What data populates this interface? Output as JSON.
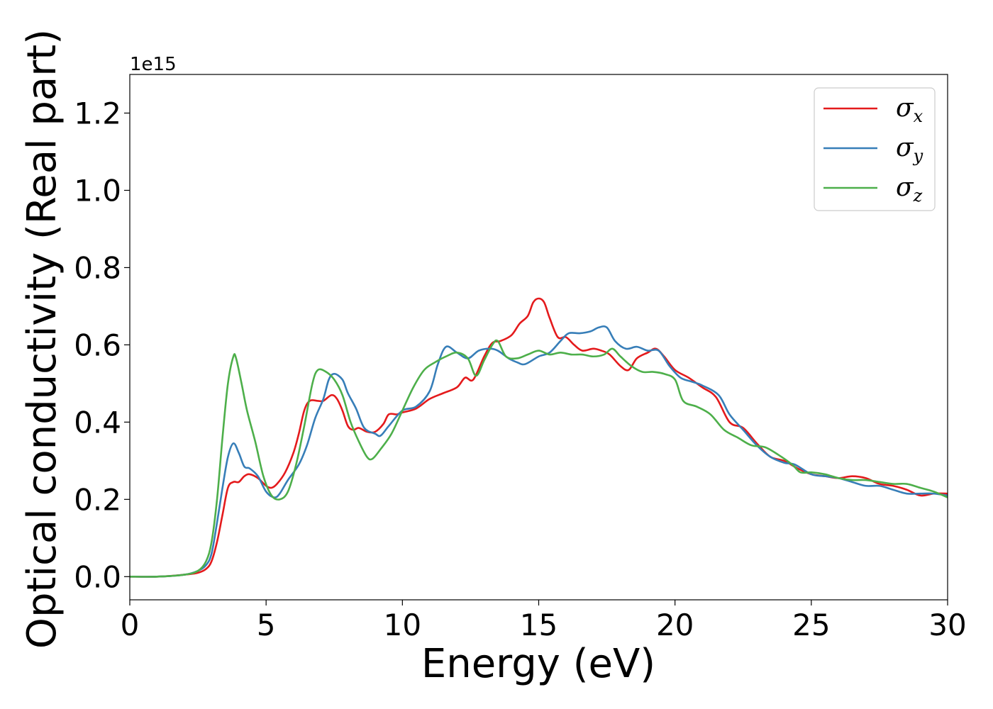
{
  "chart_data": {
    "type": "line",
    "xlabel": "Energy (eV)",
    "ylabel": "Optical conductivity (Real part)",
    "y_offset_text": "1e15",
    "xlim": [
      0,
      30
    ],
    "ylim": [
      -0.06,
      1.3
    ],
    "x_ticks": [
      0,
      5,
      10,
      15,
      20,
      25,
      30
    ],
    "x_tick_labels": [
      "0",
      "5",
      "10",
      "15",
      "20",
      "25",
      "30"
    ],
    "y_ticks": [
      0.0,
      0.2,
      0.4,
      0.6,
      0.8,
      1.0,
      1.2
    ],
    "y_tick_labels": [
      "0.0",
      "0.2",
      "0.4",
      "0.6",
      "0.8",
      "1.0",
      "1.2"
    ],
    "grid": false,
    "legend_position": "top-right",
    "series": [
      {
        "name": "σ",
        "subscript": "x",
        "color": "#e41a1c",
        "points": [
          [
            0,
            0
          ],
          [
            1,
            0
          ],
          [
            2,
            0.005
          ],
          [
            2.5,
            0.01
          ],
          [
            2.8,
            0.02
          ],
          [
            3.0,
            0.04
          ],
          [
            3.2,
            0.09
          ],
          [
            3.4,
            0.16
          ],
          [
            3.6,
            0.23
          ],
          [
            3.8,
            0.245
          ],
          [
            4.0,
            0.245
          ],
          [
            4.2,
            0.26
          ],
          [
            4.4,
            0.265
          ],
          [
            4.7,
            0.255
          ],
          [
            5.0,
            0.235
          ],
          [
            5.2,
            0.23
          ],
          [
            5.4,
            0.24
          ],
          [
            5.7,
            0.27
          ],
          [
            6.0,
            0.32
          ],
          [
            6.2,
            0.37
          ],
          [
            6.4,
            0.43
          ],
          [
            6.6,
            0.455
          ],
          [
            6.9,
            0.455
          ],
          [
            7.1,
            0.455
          ],
          [
            7.4,
            0.47
          ],
          [
            7.6,
            0.46
          ],
          [
            7.8,
            0.43
          ],
          [
            8.0,
            0.39
          ],
          [
            8.2,
            0.38
          ],
          [
            8.4,
            0.385
          ],
          [
            8.7,
            0.375
          ],
          [
            9.0,
            0.375
          ],
          [
            9.3,
            0.395
          ],
          [
            9.5,
            0.42
          ],
          [
            9.8,
            0.42
          ],
          [
            10.0,
            0.425
          ],
          [
            10.5,
            0.435
          ],
          [
            11.0,
            0.46
          ],
          [
            11.5,
            0.475
          ],
          [
            12.0,
            0.49
          ],
          [
            12.3,
            0.515
          ],
          [
            12.6,
            0.51
          ],
          [
            13.0,
            0.57
          ],
          [
            13.3,
            0.605
          ],
          [
            13.6,
            0.61
          ],
          [
            14.0,
            0.625
          ],
          [
            14.3,
            0.655
          ],
          [
            14.6,
            0.675
          ],
          [
            14.8,
            0.71
          ],
          [
            15.0,
            0.72
          ],
          [
            15.2,
            0.71
          ],
          [
            15.4,
            0.67
          ],
          [
            15.7,
            0.62
          ],
          [
            16.0,
            0.62
          ],
          [
            16.3,
            0.6
          ],
          [
            16.6,
            0.585
          ],
          [
            17.0,
            0.59
          ],
          [
            17.3,
            0.585
          ],
          [
            17.6,
            0.575
          ],
          [
            18.0,
            0.545
          ],
          [
            18.3,
            0.535
          ],
          [
            18.6,
            0.565
          ],
          [
            19.0,
            0.58
          ],
          [
            19.3,
            0.59
          ],
          [
            19.6,
            0.57
          ],
          [
            20.0,
            0.535
          ],
          [
            20.5,
            0.515
          ],
          [
            21.0,
            0.49
          ],
          [
            21.5,
            0.465
          ],
          [
            22.0,
            0.4
          ],
          [
            22.5,
            0.385
          ],
          [
            23.0,
            0.345
          ],
          [
            23.5,
            0.31
          ],
          [
            24.0,
            0.3
          ],
          [
            24.5,
            0.28
          ],
          [
            25.0,
            0.265
          ],
          [
            25.5,
            0.26
          ],
          [
            26.0,
            0.255
          ],
          [
            26.5,
            0.26
          ],
          [
            27.0,
            0.255
          ],
          [
            27.5,
            0.24
          ],
          [
            28.0,
            0.235
          ],
          [
            28.5,
            0.225
          ],
          [
            29.0,
            0.21
          ],
          [
            29.5,
            0.215
          ],
          [
            30.0,
            0.215
          ]
        ]
      },
      {
        "name": "σ",
        "subscript": "y",
        "color": "#377eb8",
        "points": [
          [
            0,
            0
          ],
          [
            1,
            0
          ],
          [
            2,
            0.005
          ],
          [
            2.5,
            0.015
          ],
          [
            2.8,
            0.03
          ],
          [
            3.0,
            0.06
          ],
          [
            3.2,
            0.14
          ],
          [
            3.4,
            0.23
          ],
          [
            3.6,
            0.31
          ],
          [
            3.8,
            0.345
          ],
          [
            4.0,
            0.32
          ],
          [
            4.2,
            0.285
          ],
          [
            4.4,
            0.28
          ],
          [
            4.7,
            0.26
          ],
          [
            5.0,
            0.22
          ],
          [
            5.3,
            0.205
          ],
          [
            5.5,
            0.215
          ],
          [
            5.8,
            0.25
          ],
          [
            6.2,
            0.29
          ],
          [
            6.5,
            0.34
          ],
          [
            6.8,
            0.41
          ],
          [
            7.1,
            0.46
          ],
          [
            7.3,
            0.51
          ],
          [
            7.5,
            0.525
          ],
          [
            7.8,
            0.51
          ],
          [
            8.0,
            0.475
          ],
          [
            8.3,
            0.435
          ],
          [
            8.6,
            0.385
          ],
          [
            9.0,
            0.37
          ],
          [
            9.2,
            0.365
          ],
          [
            9.5,
            0.39
          ],
          [
            10.0,
            0.43
          ],
          [
            10.5,
            0.44
          ],
          [
            11.0,
            0.48
          ],
          [
            11.3,
            0.55
          ],
          [
            11.6,
            0.595
          ],
          [
            12.0,
            0.58
          ],
          [
            12.4,
            0.565
          ],
          [
            12.8,
            0.585
          ],
          [
            13.2,
            0.59
          ],
          [
            13.5,
            0.585
          ],
          [
            13.9,
            0.565
          ],
          [
            14.2,
            0.555
          ],
          [
            14.5,
            0.55
          ],
          [
            15.0,
            0.57
          ],
          [
            15.4,
            0.58
          ],
          [
            15.8,
            0.61
          ],
          [
            16.1,
            0.63
          ],
          [
            16.5,
            0.63
          ],
          [
            16.9,
            0.635
          ],
          [
            17.2,
            0.645
          ],
          [
            17.5,
            0.645
          ],
          [
            17.8,
            0.61
          ],
          [
            18.2,
            0.59
          ],
          [
            18.6,
            0.595
          ],
          [
            19.0,
            0.585
          ],
          [
            19.4,
            0.585
          ],
          [
            19.8,
            0.545
          ],
          [
            20.2,
            0.515
          ],
          [
            20.6,
            0.505
          ],
          [
            21.0,
            0.495
          ],
          [
            21.6,
            0.47
          ],
          [
            22.0,
            0.42
          ],
          [
            22.5,
            0.38
          ],
          [
            23.0,
            0.34
          ],
          [
            23.5,
            0.31
          ],
          [
            24.0,
            0.295
          ],
          [
            24.4,
            0.29
          ],
          [
            25.0,
            0.265
          ],
          [
            25.5,
            0.26
          ],
          [
            26.0,
            0.255
          ],
          [
            26.5,
            0.245
          ],
          [
            27.0,
            0.235
          ],
          [
            27.5,
            0.235
          ],
          [
            28.0,
            0.225
          ],
          [
            28.5,
            0.215
          ],
          [
            29.0,
            0.215
          ],
          [
            29.5,
            0.215
          ],
          [
            30.0,
            0.21
          ]
        ]
      },
      {
        "name": "σ",
        "subscript": "z",
        "color": "#4daf4a",
        "points": [
          [
            0,
            0
          ],
          [
            1,
            0
          ],
          [
            2,
            0.005
          ],
          [
            2.5,
            0.015
          ],
          [
            2.8,
            0.04
          ],
          [
            3.0,
            0.09
          ],
          [
            3.2,
            0.2
          ],
          [
            3.4,
            0.36
          ],
          [
            3.6,
            0.5
          ],
          [
            3.8,
            0.57
          ],
          [
            3.9,
            0.565
          ],
          [
            4.1,
            0.5
          ],
          [
            4.3,
            0.43
          ],
          [
            4.6,
            0.35
          ],
          [
            4.9,
            0.26
          ],
          [
            5.2,
            0.21
          ],
          [
            5.5,
            0.2
          ],
          [
            5.8,
            0.22
          ],
          [
            6.1,
            0.29
          ],
          [
            6.4,
            0.39
          ],
          [
            6.7,
            0.5
          ],
          [
            6.9,
            0.535
          ],
          [
            7.2,
            0.53
          ],
          [
            7.5,
            0.51
          ],
          [
            7.8,
            0.47
          ],
          [
            8.1,
            0.4
          ],
          [
            8.4,
            0.35
          ],
          [
            8.7,
            0.31
          ],
          [
            8.9,
            0.305
          ],
          [
            9.2,
            0.33
          ],
          [
            9.6,
            0.37
          ],
          [
            10.0,
            0.43
          ],
          [
            10.4,
            0.49
          ],
          [
            10.8,
            0.535
          ],
          [
            11.2,
            0.555
          ],
          [
            11.6,
            0.57
          ],
          [
            12.0,
            0.58
          ],
          [
            12.4,
            0.565
          ],
          [
            12.7,
            0.52
          ],
          [
            13.0,
            0.56
          ],
          [
            13.3,
            0.6
          ],
          [
            13.5,
            0.61
          ],
          [
            13.8,
            0.57
          ],
          [
            14.2,
            0.565
          ],
          [
            14.6,
            0.575
          ],
          [
            15.0,
            0.585
          ],
          [
            15.4,
            0.575
          ],
          [
            15.8,
            0.58
          ],
          [
            16.2,
            0.575
          ],
          [
            16.6,
            0.575
          ],
          [
            17.0,
            0.57
          ],
          [
            17.4,
            0.575
          ],
          [
            17.7,
            0.59
          ],
          [
            18.0,
            0.57
          ],
          [
            18.4,
            0.545
          ],
          [
            18.8,
            0.53
          ],
          [
            19.2,
            0.53
          ],
          [
            19.6,
            0.525
          ],
          [
            20.0,
            0.51
          ],
          [
            20.3,
            0.455
          ],
          [
            20.8,
            0.44
          ],
          [
            21.3,
            0.42
          ],
          [
            21.8,
            0.38
          ],
          [
            22.3,
            0.36
          ],
          [
            22.8,
            0.34
          ],
          [
            23.3,
            0.335
          ],
          [
            23.8,
            0.315
          ],
          [
            24.3,
            0.29
          ],
          [
            24.6,
            0.27
          ],
          [
            25.0,
            0.27
          ],
          [
            25.5,
            0.265
          ],
          [
            26.0,
            0.255
          ],
          [
            26.5,
            0.25
          ],
          [
            27.0,
            0.25
          ],
          [
            27.5,
            0.245
          ],
          [
            28.0,
            0.24
          ],
          [
            28.5,
            0.24
          ],
          [
            29.0,
            0.23
          ],
          [
            29.5,
            0.22
          ],
          [
            30.0,
            0.205
          ]
        ]
      }
    ]
  }
}
